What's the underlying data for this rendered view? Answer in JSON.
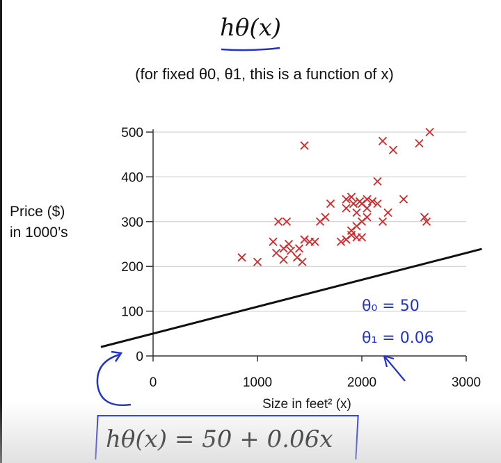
{
  "title": "hθ(x)",
  "subtitle": "(for fixed θ0, θ1, this is a function of x)",
  "ylabel_line1": "Price ($)",
  "ylabel_line2": "in 1000’s",
  "equation": "hθ(x) = 50 + 0.06x",
  "annotation_theta0": "θ₀ = 50",
  "annotation_theta1": "θ₁ = 0.06",
  "colors": {
    "marker": "#cc2a2a",
    "line": "#111111",
    "annotation": "#2233c8"
  },
  "chart_data": {
    "type": "scatter",
    "title": "hθ(x)",
    "xlabel": "Size in feet² (x)",
    "ylabel": "Price ($) in 1000’s",
    "xlim": [
      0,
      3000
    ],
    "ylim": [
      0,
      500
    ],
    "x_ticks": [
      0,
      1000,
      2000,
      3000
    ],
    "y_ticks": [
      0,
      100,
      200,
      300,
      400,
      500
    ],
    "grid": true,
    "series": [
      {
        "marker": "x",
        "points": [
          [
            850,
            220
          ],
          [
            1000,
            210
          ],
          [
            1180,
            230
          ],
          [
            1250,
            240
          ],
          [
            1300,
            250
          ],
          [
            1200,
            300
          ],
          [
            1280,
            300
          ],
          [
            1150,
            255
          ],
          [
            1250,
            215
          ],
          [
            1320,
            235
          ],
          [
            1380,
            220
          ],
          [
            1430,
            210
          ],
          [
            1400,
            240
          ],
          [
            1450,
            260
          ],
          [
            1500,
            255
          ],
          [
            1550,
            255
          ],
          [
            1600,
            300
          ],
          [
            1650,
            310
          ],
          [
            1700,
            340
          ],
          [
            1800,
            255
          ],
          [
            1850,
            260
          ],
          [
            1900,
            270
          ],
          [
            1950,
            265
          ],
          [
            2000,
            265
          ],
          [
            1900,
            280
          ],
          [
            1950,
            290
          ],
          [
            2000,
            300
          ],
          [
            2050,
            310
          ],
          [
            1850,
            330
          ],
          [
            1920,
            340
          ],
          [
            1950,
            320
          ],
          [
            1850,
            350
          ],
          [
            1900,
            355
          ],
          [
            1980,
            345
          ],
          [
            2050,
            350
          ],
          [
            2100,
            345
          ],
          [
            2150,
            340
          ],
          [
            2000,
            340
          ],
          [
            2050,
            330
          ],
          [
            2200,
            300
          ],
          [
            2250,
            320
          ],
          [
            2400,
            350
          ],
          [
            2600,
            310
          ],
          [
            2620,
            300
          ],
          [
            2150,
            390
          ],
          [
            1450,
            470
          ],
          [
            2200,
            480
          ],
          [
            2300,
            460
          ],
          [
            2550,
            475
          ],
          [
            2650,
            500
          ]
        ]
      },
      {
        "type": "line",
        "function": "50 + 0.06x",
        "theta0": 50,
        "theta1": 0.06
      }
    ]
  }
}
